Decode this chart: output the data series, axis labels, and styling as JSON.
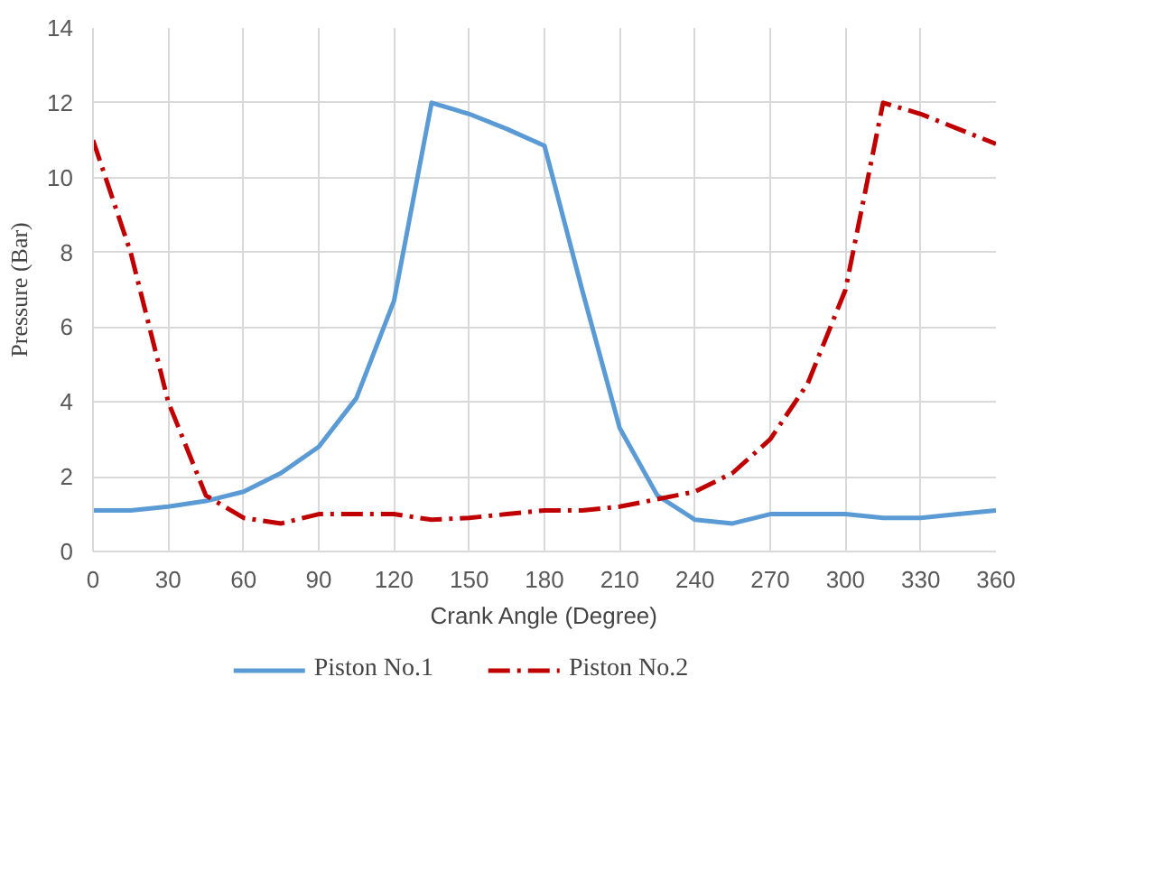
{
  "chart_data": {
    "type": "line",
    "xlabel": "Crank Angle (Degree)",
    "ylabel": "Pressure (Bar)",
    "x": [
      0,
      15,
      30,
      45,
      60,
      75,
      90,
      105,
      120,
      135,
      150,
      165,
      180,
      195,
      210,
      225,
      240,
      255,
      270,
      285,
      300,
      315,
      330,
      345,
      360
    ],
    "series": [
      {
        "name": "Piston No.1",
        "color": "#5b9bd5",
        "line_style": "solid",
        "values": [
          1.1,
          1.1,
          1.2,
          1.35,
          1.6,
          2.1,
          2.8,
          4.1,
          6.7,
          12.0,
          11.7,
          11.3,
          10.85,
          7.0,
          3.3,
          1.5,
          0.85,
          0.75,
          1.0,
          1.0,
          1.0,
          0.9,
          0.9,
          1.0,
          1.1
        ]
      },
      {
        "name": "Piston No.2",
        "color": "#c00000",
        "line_style": "dashdot",
        "values": [
          11.0,
          8.0,
          4.0,
          1.5,
          0.9,
          0.75,
          1.0,
          1.0,
          1.0,
          0.85,
          0.9,
          1.0,
          1.1,
          1.1,
          1.2,
          1.4,
          1.6,
          2.1,
          3.0,
          4.5,
          7.0,
          12.0,
          11.7,
          11.3,
          10.9
        ]
      }
    ],
    "xlim": [
      0,
      360
    ],
    "xticks": [
      0,
      30,
      60,
      90,
      120,
      150,
      180,
      210,
      240,
      270,
      300,
      330,
      360
    ],
    "ylim": [
      0,
      14
    ],
    "yticks": [
      0,
      2,
      4,
      6,
      8,
      10,
      12,
      14
    ],
    "grid": true,
    "legend": "bottom"
  }
}
